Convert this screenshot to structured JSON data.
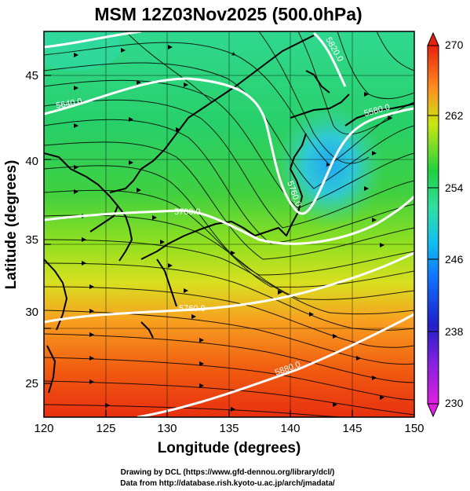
{
  "title": "MSM 12Z03Nov2025 (500.0hPa)",
  "x_axis": {
    "label": "Longitude (degrees)",
    "range": [
      120,
      150
    ],
    "ticks": [
      "120",
      "125",
      "130",
      "135",
      "140",
      "145",
      "150"
    ]
  },
  "y_axis": {
    "label": "Latitude  (degrees)",
    "range": [
      22.5,
      48
    ],
    "ticks": [
      "25",
      "30",
      "35",
      "40",
      "45"
    ]
  },
  "colorbar": {
    "range": [
      230,
      270
    ],
    "ticks": [
      "230",
      "238",
      "246",
      "254",
      "262",
      "270"
    ],
    "colors": [
      "#e020e0",
      "#2020c8",
      "#10a0ff",
      "#30e0b0",
      "#20d040",
      "#c8e810",
      "#ff9020",
      "#e82010"
    ]
  },
  "contour_labels": [
    "5640.0",
    "5580.0",
    "5760.0",
    "5700.0",
    "5820.0",
    "5880.0",
    "5760.0"
  ],
  "credits": {
    "line1": "Drawing by DCL (https://www.gfd-dennou.org/library/dcl/)",
    "line2": "Data from http://database.rish.kyoto-u.ac.jp/arch/jmadata/"
  }
}
